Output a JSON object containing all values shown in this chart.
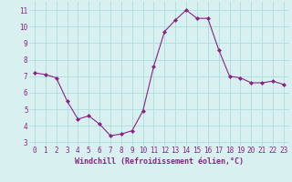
{
  "x": [
    0,
    1,
    2,
    3,
    4,
    5,
    6,
    7,
    8,
    9,
    10,
    11,
    12,
    13,
    14,
    15,
    16,
    17,
    18,
    19,
    20,
    21,
    22,
    23
  ],
  "y": [
    7.2,
    7.1,
    6.9,
    5.5,
    4.4,
    4.6,
    4.1,
    3.4,
    3.5,
    3.7,
    4.9,
    7.6,
    9.7,
    10.4,
    11.0,
    10.5,
    10.5,
    8.6,
    7.0,
    6.9,
    6.6,
    6.6,
    6.7,
    6.5
  ],
  "line_color": "#882288",
  "marker": "D",
  "marker_size": 2,
  "bg_color": "#d9f0f0",
  "grid_color": "#aadddd",
  "xlabel": "Windchill (Refroidissement éolien,°C)",
  "xlabel_color": "#882288",
  "tick_color": "#882288",
  "ylim": [
    2.8,
    11.5
  ],
  "xlim": [
    -0.5,
    23.5
  ],
  "yticks": [
    3,
    4,
    5,
    6,
    7,
    8,
    9,
    10,
    11
  ],
  "xticks": [
    0,
    1,
    2,
    3,
    4,
    5,
    6,
    7,
    8,
    9,
    10,
    11,
    12,
    13,
    14,
    15,
    16,
    17,
    18,
    19,
    20,
    21,
    22,
    23
  ],
  "tick_fontsize": 5.5,
  "xlabel_fontsize": 6.0
}
